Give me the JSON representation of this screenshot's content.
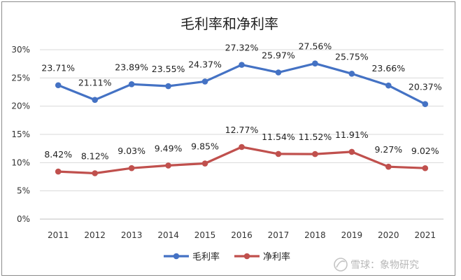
{
  "chart_data": {
    "type": "line",
    "title": "毛利率和净利率",
    "categories": [
      "2011",
      "2012",
      "2013",
      "2014",
      "2015",
      "2016",
      "2017",
      "2018",
      "2019",
      "2020",
      "2021"
    ],
    "yticks": [
      "0%",
      "5%",
      "10%",
      "15%",
      "20%",
      "25%",
      "30%"
    ],
    "ylim": [
      0,
      30
    ],
    "grid": true,
    "legend_position": "bottom",
    "series": [
      {
        "name": "毛利率",
        "color": "#4472C4",
        "values": [
          23.71,
          21.11,
          23.89,
          23.55,
          24.37,
          27.32,
          25.97,
          27.56,
          25.75,
          23.66,
          20.37
        ],
        "labels": [
          "23.71%",
          "21.11%",
          "23.89%",
          "23.55%",
          "24.37%",
          "27.32%",
          "25.97%",
          "27.56%",
          "25.75%",
          "23.66%",
          "20.37%"
        ]
      },
      {
        "name": "净利率",
        "color": "#C0504D",
        "values": [
          8.42,
          8.12,
          9.03,
          9.49,
          9.85,
          12.77,
          11.54,
          11.52,
          11.91,
          9.27,
          9.02
        ],
        "labels": [
          "8.42%",
          "8.12%",
          "9.03%",
          "9.49%",
          "9.85%",
          "12.77%",
          "11.54%",
          "11.52%",
          "11.91%",
          "9.27%",
          "9.02%"
        ]
      }
    ]
  },
  "watermark": "雪球：象物研究"
}
